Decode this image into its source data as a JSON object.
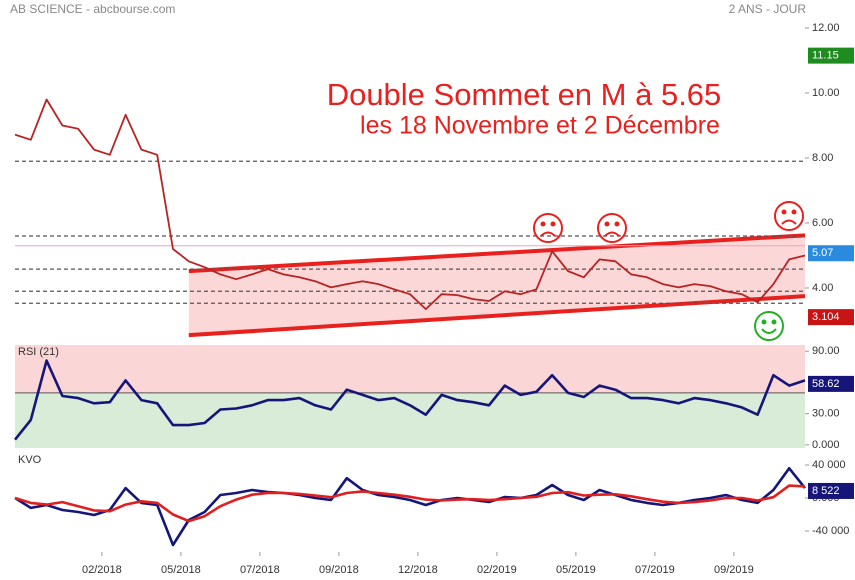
{
  "header": {
    "left": "AB SCIENCE - abcbourse.com",
    "right": "2 ANS - JOUR"
  },
  "chart_data": [
    {
      "type": "line",
      "annotations": [
        "Double Sommet en M à 5.65",
        "les 18 Novembre et 2 Décembre"
      ],
      "xlim": [
        0,
        100
      ],
      "ylim": [
        2.4,
        12.4
      ],
      "yticks": [
        {
          "value": 12,
          "label": "12.00"
        },
        {
          "value": 10,
          "label": "10.00"
        },
        {
          "value": 8,
          "label": "8.00"
        },
        {
          "value": 6,
          "label": "6.00"
        },
        {
          "value": 4,
          "label": "4.00"
        }
      ],
      "hlines": [
        7.9,
        5.6,
        4.58,
        3.9,
        3.53
      ],
      "pink_line": 5.3,
      "channel": {
        "x": [
          22,
          100
        ],
        "upper": [
          4.52,
          5.62
        ],
        "lower": [
          2.55,
          3.75
        ],
        "color": "#e8201e"
      },
      "value_markers": [
        {
          "value": 11.15,
          "color": "#1e8c1e"
        },
        {
          "value": 5.07,
          "color": "#2a8ae0"
        },
        {
          "value": 3.104,
          "color": "#c81414"
        }
      ],
      "x": [
        0,
        2,
        4,
        6,
        8,
        10,
        12,
        14,
        16,
        18,
        20,
        22,
        24,
        26,
        28,
        30,
        32,
        34,
        36,
        38,
        40,
        42,
        44,
        46,
        48,
        50,
        52,
        54,
        56,
        58,
        60,
        62,
        64,
        66,
        68,
        70,
        72,
        74,
        76,
        78,
        80,
        82,
        84,
        86,
        88,
        90,
        92,
        94,
        96,
        98,
        100
      ],
      "series": [
        {
          "color": "#b82424",
          "values": [
            8.72,
            8.56,
            9.8,
            9.0,
            8.9,
            8.26,
            8.1,
            9.33,
            8.26,
            8.1,
            5.2,
            4.82,
            4.64,
            4.42,
            4.27,
            4.42,
            4.58,
            4.42,
            4.33,
            4.21,
            4.02,
            4.12,
            4.21,
            4.12,
            3.96,
            3.81,
            3.35,
            3.81,
            3.78,
            3.66,
            3.6,
            3.9,
            3.81,
            3.96,
            5.13,
            4.52,
            4.33,
            4.88,
            4.82,
            4.42,
            4.33,
            4.12,
            4.02,
            4.12,
            4.06,
            3.9,
            3.81,
            3.56,
            4.12,
            4.88,
            5.0
          ]
        }
      ]
    },
    {
      "type": "line",
      "title": "RSI (21)",
      "xlim": [
        0,
        100
      ],
      "ylim": [
        -3,
        96
      ],
      "yticks": [
        {
          "value": 90,
          "label": "90.00"
        },
        {
          "value": 30,
          "label": "30.00"
        },
        {
          "value": 0,
          "label": "0.000"
        }
      ],
      "zone_split": 50,
      "zone_colors": [
        "#fbd6d6",
        "#d8ecd8"
      ],
      "value_markers": [
        {
          "value": 58.62,
          "color": "#16167a"
        }
      ],
      "x": [
        0,
        2,
        4,
        6,
        8,
        10,
        12,
        14,
        16,
        18,
        20,
        22,
        24,
        26,
        28,
        30,
        32,
        34,
        36,
        38,
        40,
        42,
        44,
        46,
        48,
        50,
        52,
        54,
        56,
        58,
        60,
        62,
        64,
        66,
        68,
        70,
        72,
        74,
        76,
        78,
        80,
        82,
        84,
        86,
        88,
        90,
        92,
        94,
        96,
        98,
        100
      ],
      "series": [
        {
          "color": "#16167a",
          "values": [
            5,
            24,
            81,
            47,
            45,
            40,
            41,
            62,
            43,
            40,
            19,
            19,
            21,
            34,
            35,
            38,
            43,
            43,
            45,
            38,
            34,
            53,
            48,
            43,
            45,
            38,
            29,
            48,
            43,
            41,
            38,
            57,
            48,
            51,
            67,
            50,
            46,
            57,
            53,
            45,
            45,
            43,
            40,
            45,
            43,
            40,
            36,
            29,
            67,
            57,
            62
          ]
        }
      ]
    },
    {
      "type": "line",
      "title": "KVO",
      "xlim": [
        0,
        100
      ],
      "ylim": [
        -63000,
        54500
      ],
      "yticks": [
        {
          "value": 40000,
          "label": "40 000"
        },
        {
          "value": 0,
          "label": "0.000"
        },
        {
          "value": -40000,
          "label": "-40 000"
        }
      ],
      "xticks": [
        {
          "value": 11,
          "label": "02/2018"
        },
        {
          "value": 21,
          "label": "05/2018"
        },
        {
          "value": 31,
          "label": "07/2018"
        },
        {
          "value": 41,
          "label": "09/2018"
        },
        {
          "value": 51,
          "label": "12/2018"
        },
        {
          "value": 61,
          "label": "02/2019"
        },
        {
          "value": 71,
          "label": "05/2019"
        },
        {
          "value": 81,
          "label": "07/2019"
        },
        {
          "value": 91,
          "label": "09/2019"
        }
      ],
      "value_markers": [
        {
          "value": 8522,
          "label": "8 522",
          "color": "#16167a"
        }
      ],
      "x": [
        0,
        2,
        4,
        6,
        8,
        10,
        12,
        14,
        16,
        18,
        20,
        22,
        24,
        26,
        28,
        30,
        32,
        34,
        36,
        38,
        40,
        42,
        44,
        46,
        48,
        50,
        52,
        54,
        56,
        58,
        60,
        62,
        64,
        66,
        68,
        70,
        72,
        74,
        76,
        78,
        80,
        82,
        84,
        86,
        88,
        90,
        92,
        94,
        96,
        98,
        100
      ],
      "series": [
        {
          "color": "#16167a",
          "values": [
            0,
            -12000,
            -8500,
            -14500,
            -17000,
            -20600,
            -14500,
            12000,
            -6000,
            -8500,
            -57000,
            -26700,
            -17000,
            3600,
            6000,
            9700,
            7300,
            6000,
            3600,
            0,
            -2400,
            24000,
            9700,
            3600,
            1200,
            -2400,
            -8500,
            -2400,
            0,
            -2400,
            -4800,
            1200,
            0,
            3600,
            15700,
            3600,
            -2400,
            9700,
            3600,
            -2400,
            -6000,
            -8500,
            -6000,
            -2400,
            0,
            3600,
            -2400,
            -6000,
            9700,
            36000,
            12000
          ]
        },
        {
          "color": "#e02020",
          "values": [
            0,
            -6000,
            -8000,
            -5000,
            -10000,
            -15000,
            -16000,
            -8000,
            -4000,
            -6000,
            -20000,
            -28000,
            -22000,
            -10000,
            -2000,
            4000,
            6000,
            6000,
            5000,
            3000,
            1000,
            6000,
            8000,
            6000,
            4000,
            1500,
            -2000,
            -3000,
            -2000,
            -1500,
            -2500,
            -1500,
            0,
            1500,
            6000,
            7000,
            3000,
            4000,
            4500,
            2000,
            -1500,
            -4500,
            -6000,
            -5000,
            -3000,
            0,
            0,
            -3000,
            1000,
            15000,
            14000
          ]
        }
      ]
    }
  ]
}
